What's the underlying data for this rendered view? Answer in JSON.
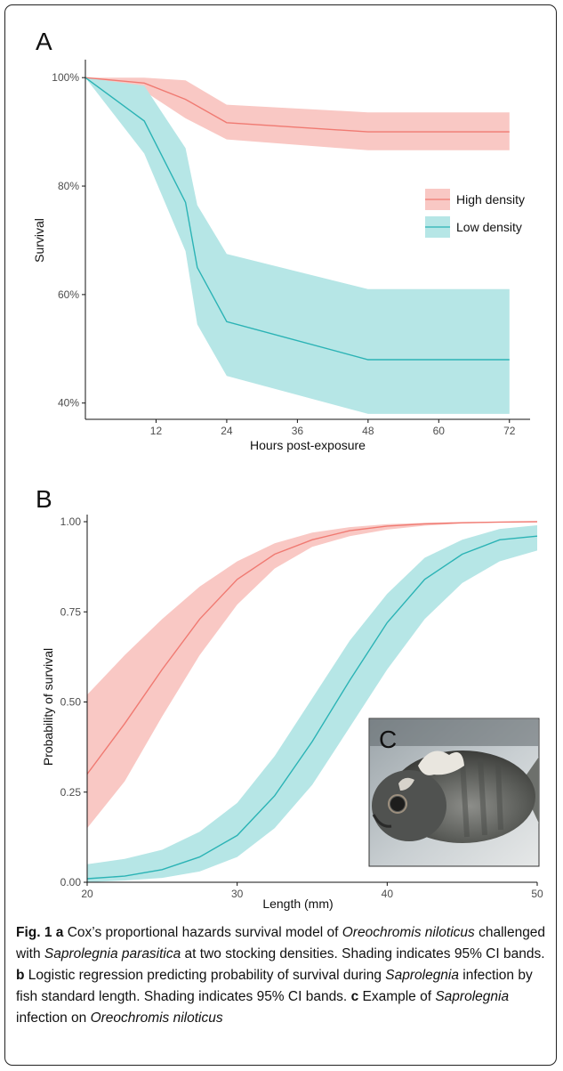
{
  "colors": {
    "high": "#f07a72",
    "high_band": "#f9c8c4",
    "low": "#2bb3b5",
    "low_band": "#b6e6e6"
  },
  "chart_data": [
    {
      "panel": "A",
      "type": "line",
      "xlabel": "Hours post-exposure",
      "ylabel": "Survival",
      "xlim": [
        0,
        74
      ],
      "ylim": [
        37,
        102
      ],
      "xticks": [
        12,
        24,
        36,
        48,
        60,
        72
      ],
      "yticks": [
        40,
        60,
        80,
        100
      ],
      "ytick_labels": [
        "40%",
        "60%",
        "80%",
        "100%"
      ],
      "legend_position": "right",
      "series": [
        {
          "name": "High density",
          "color": "#f07a72",
          "band_color": "#f9c8c4",
          "x": [
            0,
            10,
            17,
            24,
            48,
            72
          ],
          "y": [
            100,
            99,
            96,
            91.7,
            90,
            90
          ],
          "lower": [
            100,
            97.5,
            92.5,
            88.6,
            86.6,
            86.6
          ],
          "upper": [
            100,
            100,
            99.5,
            95,
            93.6,
            93.6
          ]
        },
        {
          "name": "Low density",
          "color": "#2bb3b5",
          "band_color": "#b6e6e6",
          "x": [
            0,
            10,
            17,
            19,
            24,
            48,
            72
          ],
          "y": [
            100,
            92,
            77,
            65,
            55,
            48,
            48
          ],
          "lower": [
            100,
            86,
            68,
            54.5,
            45,
            38,
            38
          ],
          "upper": [
            100,
            98.5,
            87,
            76.5,
            67.5,
            61,
            61
          ]
        }
      ]
    },
    {
      "panel": "B",
      "type": "line",
      "xlabel": "Length (mm)",
      "ylabel": "Probability of survival",
      "xlim": [
        20,
        50
      ],
      "ylim": [
        0,
        1
      ],
      "xticks": [
        20,
        30,
        40,
        50
      ],
      "yticks": [
        0,
        0.25,
        0.5,
        0.75,
        1
      ],
      "ytick_labels": [
        "0.00",
        "0.25",
        "0.50",
        "0.75",
        "1.00"
      ],
      "series": [
        {
          "color": "#f07a72",
          "band_color": "#f9c8c4",
          "x": [
            20,
            22.5,
            25,
            27.5,
            30,
            32.5,
            35,
            37.5,
            40,
            42.5,
            45,
            47.5,
            50
          ],
          "y": [
            0.3,
            0.44,
            0.59,
            0.73,
            0.84,
            0.91,
            0.95,
            0.975,
            0.988,
            0.994,
            0.997,
            0.999,
            1.0
          ],
          "lower": [
            0.15,
            0.28,
            0.46,
            0.63,
            0.77,
            0.87,
            0.93,
            0.96,
            0.978,
            0.989,
            0.995,
            0.998,
            0.999
          ],
          "upper": [
            0.52,
            0.63,
            0.73,
            0.82,
            0.89,
            0.94,
            0.97,
            0.985,
            0.993,
            0.997,
            0.999,
            1.0,
            1.0
          ]
        },
        {
          "color": "#2bb3b5",
          "band_color": "#b6e6e6",
          "x": [
            20,
            22.5,
            25,
            27.5,
            30,
            32.5,
            35,
            37.5,
            40,
            42.5,
            45,
            47.5,
            50
          ],
          "y": [
            0.01,
            0.017,
            0.035,
            0.07,
            0.13,
            0.24,
            0.39,
            0.56,
            0.72,
            0.84,
            0.91,
            0.95,
            0.96
          ],
          "lower": [
            0.0,
            0.005,
            0.012,
            0.03,
            0.07,
            0.15,
            0.27,
            0.43,
            0.59,
            0.73,
            0.83,
            0.89,
            0.92
          ],
          "upper": [
            0.05,
            0.065,
            0.09,
            0.14,
            0.22,
            0.35,
            0.51,
            0.67,
            0.8,
            0.9,
            0.95,
            0.98,
            0.99
          ]
        }
      ]
    }
  ],
  "panels": {
    "a": "A",
    "b": "B",
    "c": "C"
  },
  "inset": {
    "description": "photo-of-infected-fish"
  },
  "caption": {
    "fig": "Fig. 1",
    "a_label": "a",
    "a_text_1": " Cox’s proportional hazards survival model of ",
    "a_species": "Oreochromis niloticus",
    "a_text_2": " challenged with ",
    "a_pathogen": "Saprolegnia parasitica",
    "a_text_3": " at two stocking densities. Shading indicates 95% CI bands. ",
    "b_label": "b",
    "b_text_1": " Logistic regression predicting probability of survival during ",
    "b_pathogen": "Saprolegnia",
    "b_text_2": " infection by fish standard length. Shading indicates 95% CI bands. ",
    "c_label": "c",
    "c_text_1": " Example of ",
    "c_pathogen": "Saprolegnia",
    "c_text_2": " infection on ",
    "c_species": "Oreochromis niloticus"
  }
}
